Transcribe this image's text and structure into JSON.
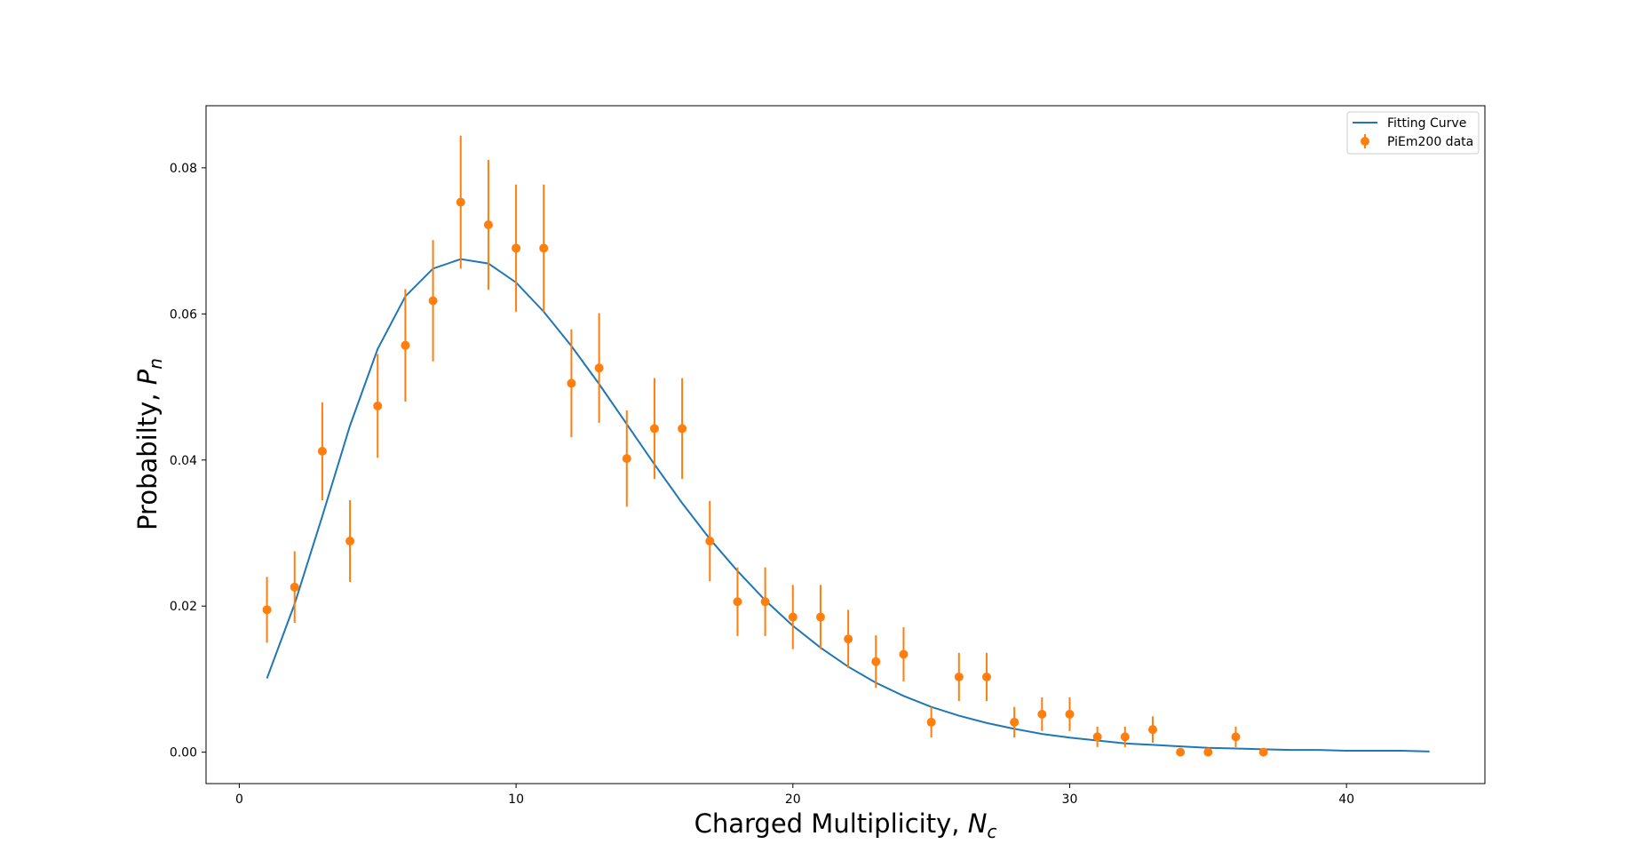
{
  "chart_data": {
    "type": "scatter",
    "xlabel": "Charged Multiplicity,",
    "xlabel_symbol": "N",
    "xlabel_subscript": "c",
    "ylabel": "Probabilty,",
    "ylabel_symbol": "P",
    "ylabel_subscript": "n",
    "xlim": [
      -1.2,
      45
    ],
    "ylim": [
      -0.0043,
      0.0885
    ],
    "xticks": [
      0,
      10,
      20,
      30,
      40
    ],
    "xtick_labels": [
      "0",
      "10",
      "20",
      "30",
      "40"
    ],
    "yticks": [
      0.0,
      0.02,
      0.04,
      0.06,
      0.08
    ],
    "ytick_labels": [
      "0.00",
      "0.02",
      "0.04",
      "0.06",
      "0.08"
    ],
    "grid": false,
    "legend_position": "top-right",
    "series": [
      {
        "name": "Fitting Curve",
        "kind": "line",
        "color": "#1f77b4",
        "x": [
          1,
          2,
          3,
          4,
          5,
          6,
          7,
          8,
          9,
          10,
          11,
          12,
          13,
          14,
          15,
          16,
          17,
          18,
          19,
          20,
          21,
          22,
          23,
          24,
          25,
          26,
          27,
          28,
          29,
          30,
          31,
          32,
          33,
          34,
          35,
          36,
          37,
          38,
          39,
          40,
          41,
          42,
          43
        ],
        "y": [
          0.0101,
          0.0203,
          0.0323,
          0.0447,
          0.0552,
          0.0624,
          0.0662,
          0.0675,
          0.0669,
          0.0643,
          0.0603,
          0.0556,
          0.0504,
          0.0449,
          0.0394,
          0.0341,
          0.0292,
          0.0248,
          0.0208,
          0.0173,
          0.0143,
          0.0117,
          0.0095,
          0.0077,
          0.0062,
          0.005,
          0.004,
          0.0032,
          0.0025,
          0.002,
          0.0016,
          0.0012,
          0.001,
          0.0008,
          0.0006,
          0.0005,
          0.0004,
          0.0003,
          0.0003,
          0.0002,
          0.0002,
          0.0002,
          0.0001
        ]
      },
      {
        "name": "PiEm200 data",
        "kind": "errorbar",
        "color": "#ff7f0e",
        "x": [
          1,
          2,
          3,
          4,
          5,
          6,
          7,
          8,
          9,
          10,
          11,
          12,
          13,
          14,
          15,
          16,
          17,
          18,
          19,
          20,
          21,
          22,
          23,
          24,
          25,
          26,
          27,
          28,
          29,
          30,
          31,
          32,
          33,
          34,
          35,
          36,
          37
        ],
        "y": [
          0.0195,
          0.0226,
          0.0412,
          0.0289,
          0.0474,
          0.0557,
          0.0618,
          0.0753,
          0.0722,
          0.069,
          0.069,
          0.0505,
          0.0526,
          0.0402,
          0.0443,
          0.0443,
          0.0289,
          0.0206,
          0.0206,
          0.0185,
          0.0185,
          0.0155,
          0.0124,
          0.0134,
          0.0041,
          0.0103,
          0.0103,
          0.0041,
          0.0052,
          0.0052,
          0.0021,
          0.0021,
          0.0031,
          0.0,
          0.0,
          0.0021,
          0.0
        ],
        "yerr": [
          0.0045,
          0.0049,
          0.0067,
          0.0056,
          0.0071,
          0.0077,
          0.0083,
          0.0091,
          0.0089,
          0.0087,
          0.0087,
          0.0074,
          0.0075,
          0.0066,
          0.0069,
          0.0069,
          0.0055,
          0.0047,
          0.0047,
          0.0044,
          0.0044,
          0.004,
          0.0036,
          0.0037,
          0.0021,
          0.0033,
          0.0033,
          0.0021,
          0.0023,
          0.0023,
          0.0014,
          0.0014,
          0.0018,
          0.0,
          0.0,
          0.0014,
          0.0
        ]
      }
    ]
  }
}
